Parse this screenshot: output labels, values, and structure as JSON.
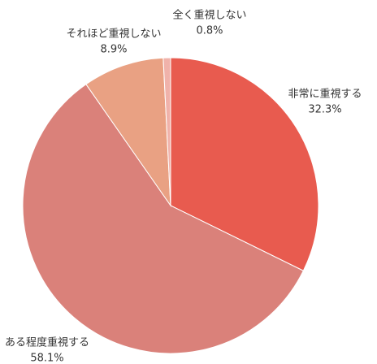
{
  "chart_data": {
    "type": "pie",
    "categories": [
      "非常に重視する",
      "ある程度重視する",
      "それほど重視しない",
      "全く重視しない"
    ],
    "values": [
      32.3,
      58.1,
      8.9,
      0.8
    ],
    "value_labels": [
      "32.3%",
      "58.1%",
      "8.9%",
      "0.8%"
    ],
    "colors": [
      "#e85b4f",
      "#da817a",
      "#e9a183",
      "#f0b2aa"
    ]
  }
}
